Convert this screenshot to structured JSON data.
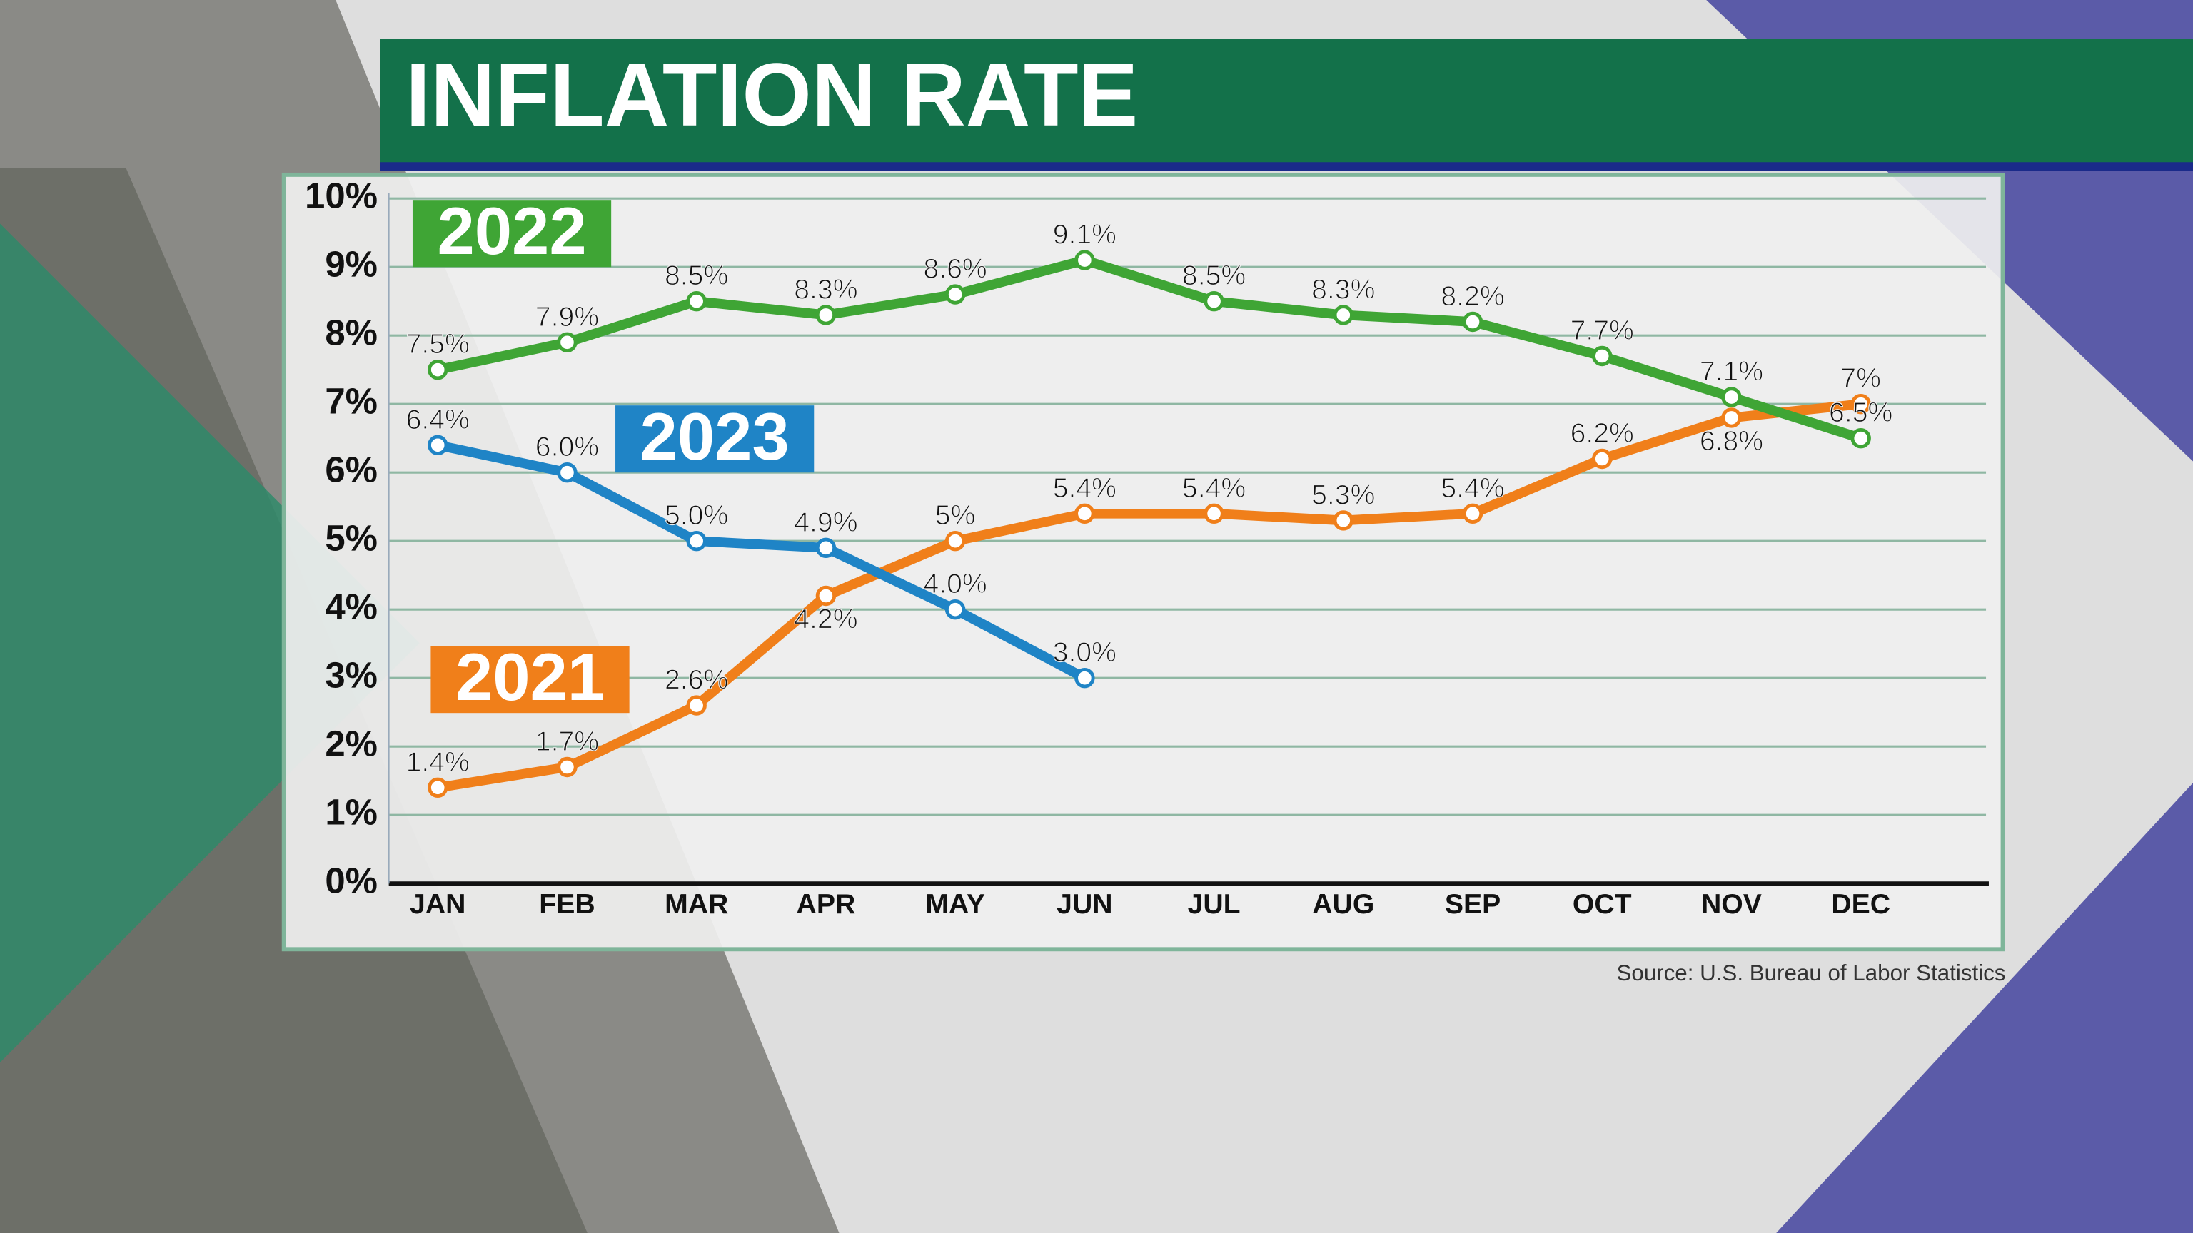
{
  "chart_data": {
    "type": "line",
    "title": "INFLATION RATE",
    "source": "Source: U.S. Bureau of Labor Statistics",
    "categories": [
      "JAN",
      "FEB",
      "MAR",
      "APR",
      "MAY",
      "JUN",
      "JUL",
      "AUG",
      "SEP",
      "OCT",
      "NOV",
      "DEC"
    ],
    "series": [
      {
        "name": "2021",
        "color": "#f07f1a",
        "values": [
          1.4,
          1.7,
          2.6,
          4.2,
          5,
          5.4,
          5.4,
          5.3,
          5.4,
          6.2,
          6.8,
          7
        ],
        "value_labels": [
          "1.4%",
          "1.7%",
          "2.6%",
          "4.2%",
          "5%",
          "5.4%",
          "5.4%",
          "5.3%",
          "5.4%",
          "6.2%",
          "6.8%",
          "7%"
        ]
      },
      {
        "name": "2022",
        "color": "#3fa535",
        "values": [
          7.5,
          7.9,
          8.5,
          8.3,
          8.6,
          9.1,
          8.5,
          8.3,
          8.2,
          7.7,
          7.1,
          6.5
        ],
        "value_labels": [
          "7.5%",
          "7.9%",
          "8.5%",
          "8.3%",
          "8.6%",
          "9.1%",
          "8.5%",
          "8.3%",
          "8.2%",
          "7.7%",
          "7.1%",
          "6.5%"
        ]
      },
      {
        "name": "2023",
        "color": "#1f84c6",
        "values": [
          6.4,
          6.0,
          5.0,
          4.9,
          4.0,
          3.0,
          null,
          null,
          null,
          null,
          null,
          null
        ],
        "value_labels": [
          "6.4%",
          "6.0%",
          "5.0%",
          "4.9%",
          "4.0%",
          "3.0%",
          null,
          null,
          null,
          null,
          null,
          null
        ]
      }
    ],
    "ylim": [
      0,
      10
    ],
    "yticks": [
      {
        "value": 0,
        "label": "0%"
      },
      {
        "value": 1,
        "label": "1%"
      },
      {
        "value": 2,
        "label": "2%"
      },
      {
        "value": 3,
        "label": "3%"
      },
      {
        "value": 4,
        "label": "4%"
      },
      {
        "value": 5,
        "label": "5%"
      },
      {
        "value": 6,
        "label": "6%"
      },
      {
        "value": 7,
        "label": "7%"
      },
      {
        "value": 8,
        "label": "8%"
      },
      {
        "value": 9,
        "label": "9%"
      },
      {
        "value": 10,
        "label": "10%"
      }
    ],
    "grid": true
  }
}
